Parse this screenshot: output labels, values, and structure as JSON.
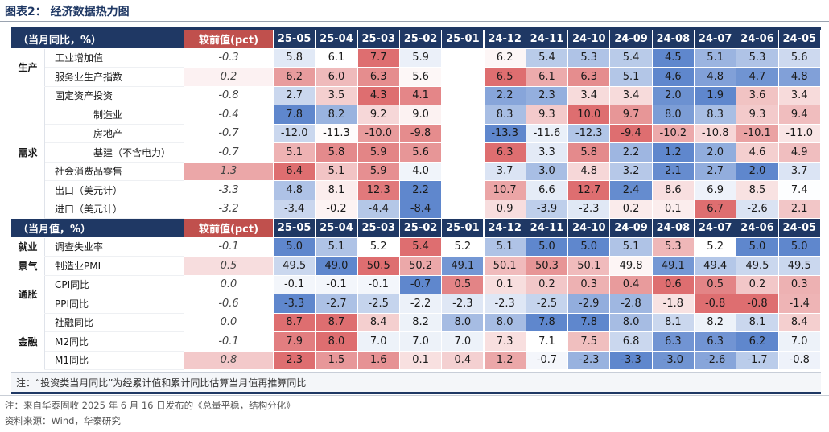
{
  "page": {
    "title": "图表2： 经济数据热力图",
    "footnote_source": "注：来自华泰固收 2025 年 6 月 16 日发布的《总量平稳，结构分化》",
    "data_source": "资料来源：Wind，华泰研究"
  },
  "chart_data": {
    "type": "table",
    "title": "图表2： 经济数据热力图",
    "columns": [
      "25-05",
      "25-04",
      "25-03",
      "25-02",
      "25-01",
      "24-12",
      "24-11",
      "24-10",
      "24-09",
      "24-08",
      "24-07",
      "24-06",
      "24-05"
    ],
    "change_header": "较前值(pct)",
    "note": "注：“投资类当月同比”为经累计值和累计同比估算当月值再推算同比",
    "sections": [
      {
        "header": "（当月同比，%）",
        "groups": [
          {
            "name": "生产",
            "rows": [
              {
                "label": "工业增加值",
                "indent": 0,
                "change": "-0.3",
                "values": [
                  5.8,
                  6.1,
                  7.7,
                  5.9,
                  null,
                  6.2,
                  5.4,
                  5.3,
                  5.4,
                  4.5,
                  5.1,
                  5.3,
                  5.6
                ]
              },
              {
                "label": "服务业生产指数",
                "indent": 0,
                "change": "0.2",
                "values": [
                  6.2,
                  6.0,
                  6.3,
                  5.6,
                  null,
                  6.5,
                  6.1,
                  6.3,
                  5.1,
                  4.6,
                  4.8,
                  4.7,
                  4.8
                ]
              }
            ]
          },
          {
            "name": "需求",
            "rows": [
              {
                "label": "固定资产投资",
                "indent": 0,
                "change": "-0.8",
                "values": [
                  2.7,
                  3.5,
                  4.3,
                  4.1,
                  null,
                  2.2,
                  2.3,
                  3.4,
                  3.4,
                  2.0,
                  1.9,
                  3.6,
                  3.4
                ]
              },
              {
                "label": "制造业",
                "indent": 2,
                "change": "-0.4",
                "values": [
                  7.8,
                  8.2,
                  9.2,
                  9.0,
                  null,
                  8.3,
                  9.3,
                  10.0,
                  9.7,
                  8.0,
                  8.3,
                  9.3,
                  9.4
                ]
              },
              {
                "label": "房地产",
                "indent": 2,
                "change": "-0.7",
                "values": [
                  -12.0,
                  -11.3,
                  -10.0,
                  -9.8,
                  null,
                  -13.3,
                  -11.6,
                  -12.3,
                  -9.4,
                  -10.2,
                  -10.8,
                  -10.1,
                  -11.0
                ]
              },
              {
                "label": "基建（不含电力）",
                "indent": 2,
                "change": "-0.7",
                "values": [
                  5.1,
                  5.8,
                  5.9,
                  5.6,
                  null,
                  6.3,
                  3.3,
                  5.8,
                  2.2,
                  1.2,
                  2.0,
                  4.6,
                  4.9
                ]
              },
              {
                "label": "社会消费品零售",
                "indent": 0,
                "change": "1.3",
                "values": [
                  6.4,
                  5.1,
                  5.9,
                  4.0,
                  null,
                  3.7,
                  3.0,
                  4.8,
                  3.2,
                  2.1,
                  2.7,
                  2.0,
                  3.7
                ]
              },
              {
                "label": "出口（美元计）",
                "indent": 0,
                "change": "-3.3",
                "values": [
                  4.8,
                  8.1,
                  12.3,
                  2.2,
                  null,
                  10.7,
                  6.6,
                  12.7,
                  2.4,
                  8.6,
                  6.9,
                  8.5,
                  7.4
                ]
              },
              {
                "label": "进口（美元计）",
                "indent": 0,
                "change": "-3.2",
                "values": [
                  -3.4,
                  -0.2,
                  -4.4,
                  -8.4,
                  null,
                  0.9,
                  -3.9,
                  -2.3,
                  0.2,
                  0.1,
                  6.7,
                  -2.6,
                  2.1
                ]
              }
            ]
          }
        ]
      },
      {
        "header": "（当月值，%）",
        "groups": [
          {
            "name": "就业",
            "rows": [
              {
                "label": "调查失业率",
                "indent": 0,
                "change": "-0.1",
                "values": [
                  5.0,
                  5.1,
                  5.2,
                  5.4,
                  5.2,
                  5.1,
                  5.0,
                  5.0,
                  5.1,
                  5.3,
                  5.2,
                  5.0,
                  5.0
                ]
              }
            ]
          },
          {
            "name": "景气",
            "rows": [
              {
                "label": "制造业PMI",
                "indent": 0,
                "change": "0.5",
                "values": [
                  49.5,
                  49.0,
                  50.5,
                  50.2,
                  49.1,
                  50.1,
                  50.3,
                  50.1,
                  49.8,
                  49.1,
                  49.4,
                  49.5,
                  49.5
                ]
              }
            ]
          },
          {
            "name": "通胀",
            "rows": [
              {
                "label": "CPI同比",
                "indent": 0,
                "change": "0.0",
                "values": [
                  -0.1,
                  -0.1,
                  -0.1,
                  -0.7,
                  0.5,
                  0.1,
                  0.2,
                  0.3,
                  0.4,
                  0.6,
                  0.5,
                  0.2,
                  0.3
                ]
              },
              {
                "label": "PPI同比",
                "indent": 0,
                "change": "-0.6",
                "values": [
                  -3.3,
                  -2.7,
                  -2.5,
                  -2.2,
                  -2.3,
                  -2.3,
                  -2.5,
                  -2.9,
                  -2.8,
                  -1.8,
                  -0.8,
                  -0.8,
                  -1.4
                ]
              }
            ]
          },
          {
            "name": "金融",
            "rows": [
              {
                "label": "社融同比",
                "indent": 0,
                "change": "0.0",
                "values": [
                  8.7,
                  8.7,
                  8.4,
                  8.2,
                  8.0,
                  8.0,
                  7.8,
                  7.8,
                  8.0,
                  8.1,
                  8.2,
                  8.1,
                  8.4
                ]
              },
              {
                "label": "M2同比",
                "indent": 0,
                "change": "-0.1",
                "values": [
                  7.9,
                  8.0,
                  7.0,
                  7.0,
                  7.0,
                  7.3,
                  7.1,
                  7.5,
                  6.8,
                  6.3,
                  6.3,
                  6.2,
                  7.0
                ]
              },
              {
                "label": "M1同比",
                "indent": 0,
                "change": "0.8",
                "values": [
                  2.3,
                  1.5,
                  1.6,
                  0.1,
                  0.4,
                  1.2,
                  -0.7,
                  -2.3,
                  -3.3,
                  -3.0,
                  -2.6,
                  -1.7,
                  -0.8
                ]
              }
            ]
          }
        ]
      }
    ]
  }
}
